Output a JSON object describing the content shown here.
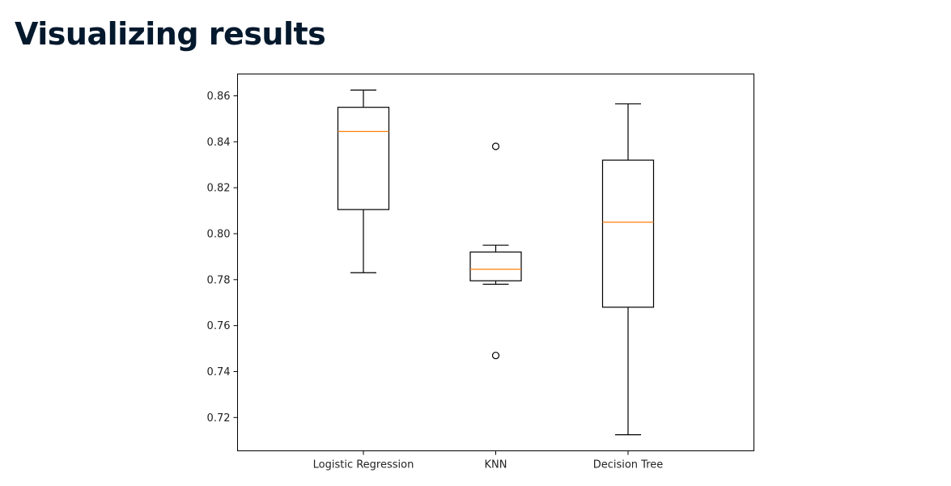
{
  "page": {
    "title": "Visualizing results"
  },
  "chart_data": {
    "type": "boxplot",
    "title": "",
    "xlabel": "",
    "ylabel": "",
    "categories": [
      "Logistic Regression",
      "KNN",
      "Decision Tree"
    ],
    "boxes": [
      {
        "category": "Logistic Regression",
        "whisker_low": 0.783,
        "q1": 0.8105,
        "median": 0.8445,
        "q3": 0.855,
        "whisker_high": 0.8625,
        "outliers": []
      },
      {
        "category": "KNN",
        "whisker_low": 0.778,
        "q1": 0.7795,
        "median": 0.7845,
        "q3": 0.792,
        "whisker_high": 0.795,
        "outliers": [
          0.838,
          0.747
        ]
      },
      {
        "category": "Decision Tree",
        "whisker_low": 0.7125,
        "q1": 0.768,
        "median": 0.805,
        "q3": 0.832,
        "whisker_high": 0.8565,
        "outliers": []
      }
    ],
    "ylim": [
      0.7055,
      0.8695
    ],
    "yticks": [
      0.72,
      0.74,
      0.76,
      0.78,
      0.8,
      0.82,
      0.84,
      0.86
    ],
    "ytick_labels": [
      "0.72",
      "0.74",
      "0.76",
      "0.78",
      "0.80",
      "0.82",
      "0.84",
      "0.86"
    ],
    "grid": false,
    "legend": "none",
    "colors": {
      "box": "#000000",
      "median": "#ff7f0e",
      "axes": "#000000",
      "title": "#05192d"
    }
  }
}
